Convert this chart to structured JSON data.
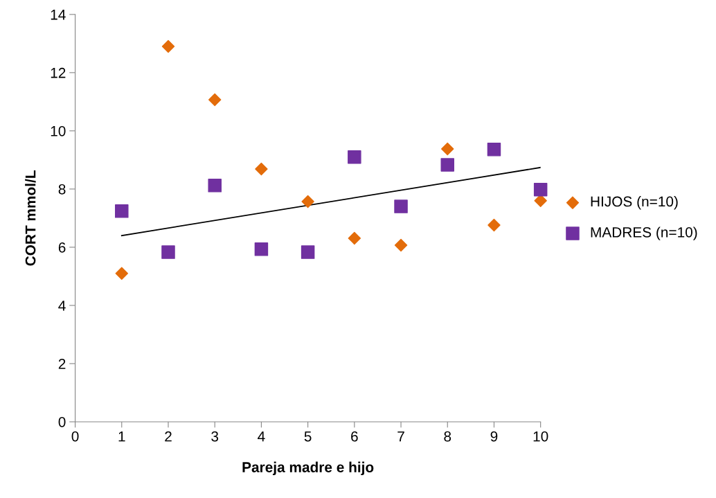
{
  "chart_data": {
    "type": "scatter",
    "xlabel": "Pareja madre e hijo",
    "ylabel": "CORT mmol/L",
    "xlim": [
      0,
      10
    ],
    "ylim": [
      0,
      14
    ],
    "xticks": [
      0,
      1,
      2,
      3,
      4,
      5,
      6,
      7,
      8,
      9,
      10
    ],
    "yticks": [
      0,
      2,
      4,
      6,
      8,
      10,
      12,
      14
    ],
    "grid": false,
    "legend": "right",
    "x": [
      1,
      2,
      3,
      4,
      5,
      6,
      7,
      8,
      9,
      10
    ],
    "series": [
      {
        "name": "HIJOS (n=10)",
        "color": "#e36c0a",
        "marker": "diamond",
        "values": [
          5.1,
          12.9,
          11.07,
          8.69,
          7.57,
          6.31,
          6.07,
          9.38,
          6.76,
          7.6
        ]
      },
      {
        "name": "MADRES (n=10)",
        "color": "#7030a0",
        "marker": "square",
        "values": [
          7.24,
          5.83,
          8.12,
          5.93,
          5.83,
          9.1,
          7.4,
          8.83,
          9.36,
          7.98
        ]
      },
      {
        "type": "line",
        "color": "#000000",
        "marker": "none",
        "x": [
          1,
          10
        ],
        "values": [
          6.4,
          8.74
        ]
      }
    ]
  }
}
